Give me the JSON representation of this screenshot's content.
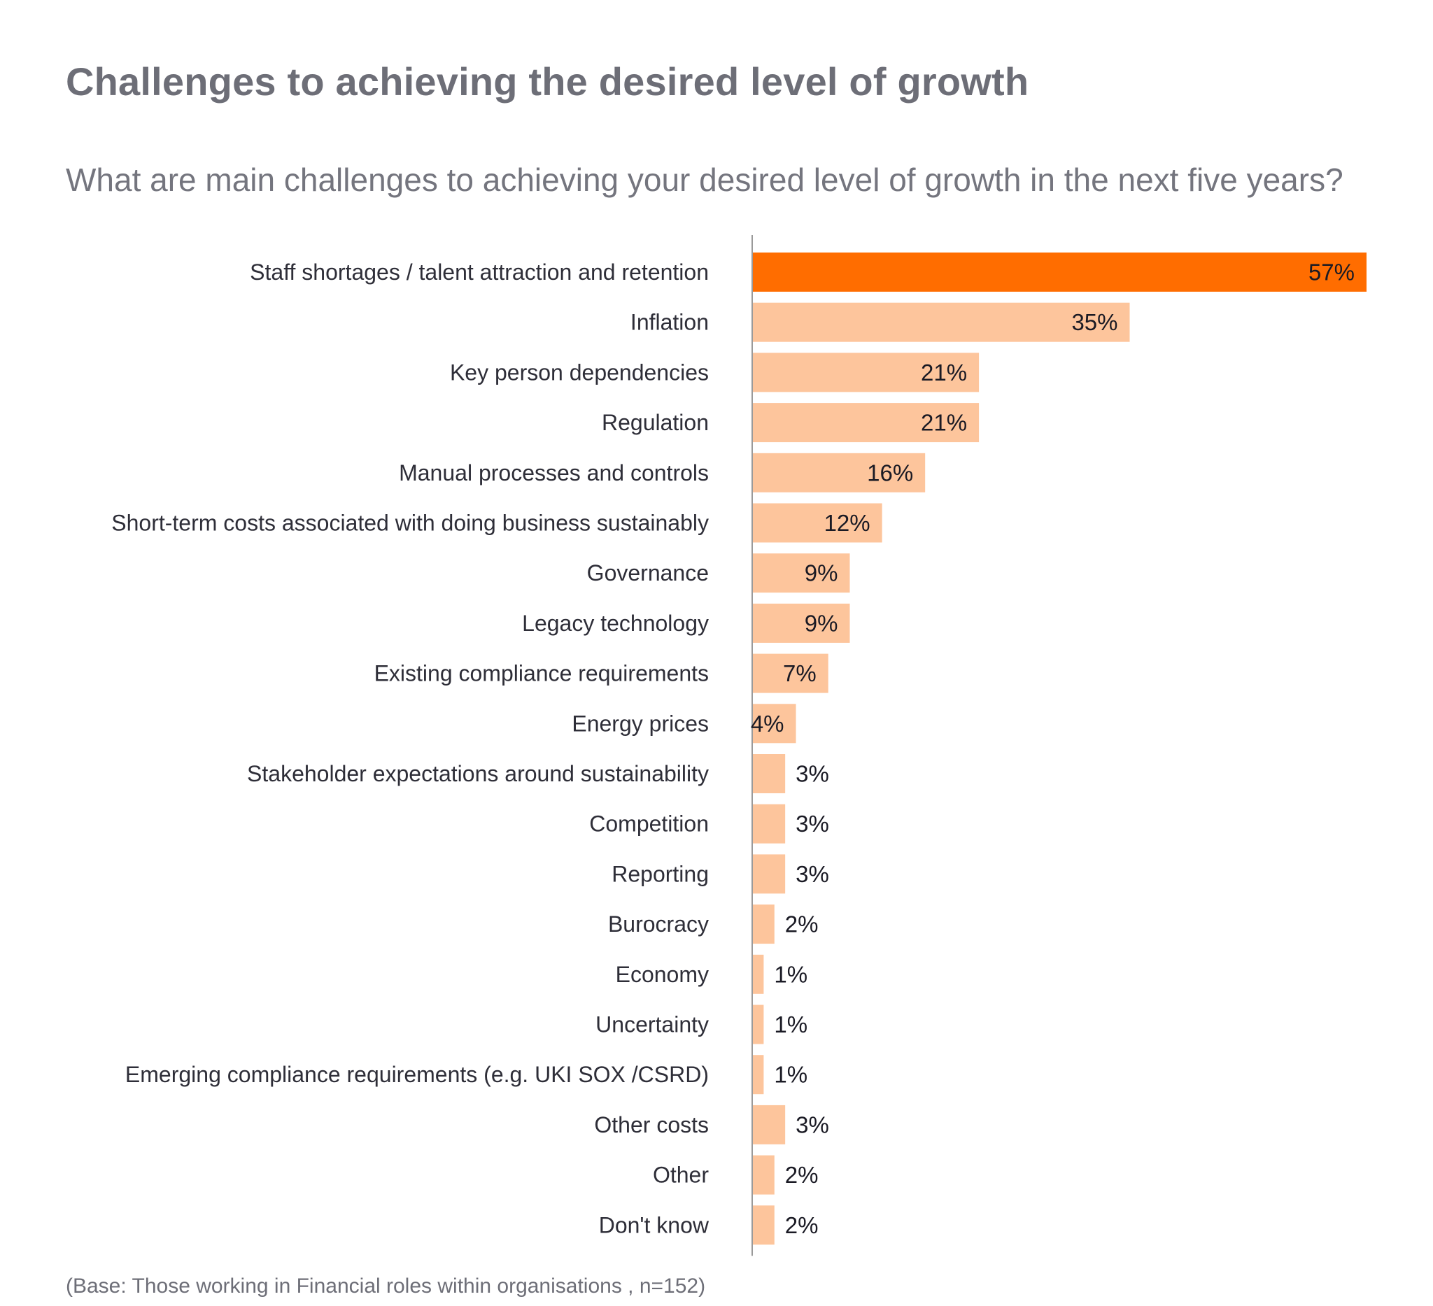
{
  "title": "Challenges to achieving the desired level of growth",
  "subtitle": "What are main challenges to achieving your desired level of growth in the next five years?",
  "footnote": "(Base: Those working in Financial roles within organisations , n=152)",
  "colors": {
    "highlight_bar": "#ff6d00",
    "bar": "#fdc59c",
    "highlight_value_text": "#ffffff",
    "value_text": "#1a1a24",
    "axis": "#9a9a9a"
  },
  "chart_data": {
    "type": "bar",
    "orientation": "horizontal",
    "value_suffix": "%",
    "highlight_index": 0,
    "xlim": [
      0,
      57
    ],
    "grid": false,
    "categories": [
      "Staff shortages / talent attraction and retention",
      "Inflation",
      "Key person dependencies",
      "Regulation",
      "Manual processes and controls",
      "Short-term costs associated with doing business sustainably",
      "Governance",
      "Legacy technology",
      "Existing compliance requirements",
      "Energy prices",
      "Stakeholder expectations around sustainability",
      "Competition",
      "Reporting",
      "Burocracy",
      "Economy",
      "Uncertainty",
      "Emerging compliance requirements (e.g. UKI SOX /CSRD)",
      "Other costs",
      "Other",
      "Don't know"
    ],
    "values": [
      57,
      35,
      21,
      21,
      16,
      12,
      9,
      9,
      7,
      4,
      3,
      3,
      3,
      2,
      1,
      1,
      1,
      3,
      2,
      2
    ],
    "value_labels": [
      "57%",
      "35%",
      "21%",
      "21%",
      "16%",
      "12%",
      "9%",
      "9%",
      "7%",
      "4%",
      "3%",
      "3%",
      "3%",
      "2%",
      "1%",
      "1%",
      "1%",
      "3%",
      "2%",
      "2%"
    ]
  }
}
